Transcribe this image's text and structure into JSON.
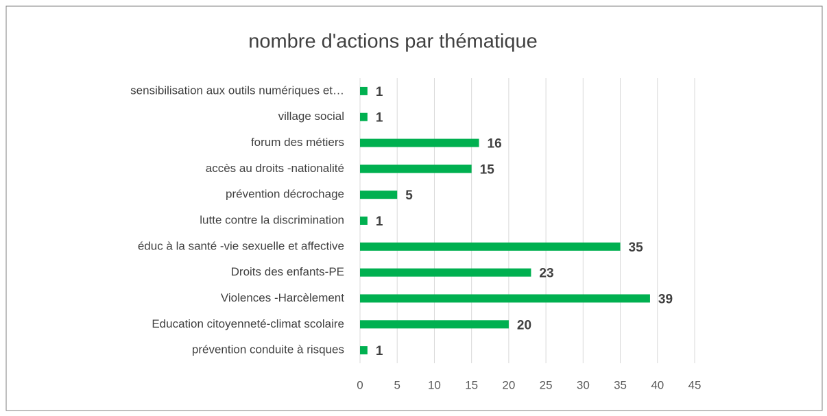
{
  "chart_data": {
    "type": "bar",
    "orientation": "horizontal",
    "title": "nombre d'actions par thématique",
    "categories": [
      "sensibilisation aux outils numériques et…",
      "village social",
      "forum des métiers",
      "accès au droits -nationalité",
      "prévention décrochage",
      "lutte contre la discrimination",
      "éduc à la santé -vie sexuelle et affective",
      "Droits des enfants-PE",
      "Violences -Harcèlement",
      "Education citoyenneté-climat scolaire",
      "prévention conduite à risques"
    ],
    "values": [
      1,
      1,
      16,
      15,
      5,
      1,
      35,
      23,
      39,
      20,
      1
    ],
    "color": "#00b050",
    "xlim": [
      0,
      45
    ],
    "xticks": [
      0,
      5,
      10,
      15,
      20,
      25,
      30,
      35,
      40,
      45
    ],
    "grid": true
  }
}
